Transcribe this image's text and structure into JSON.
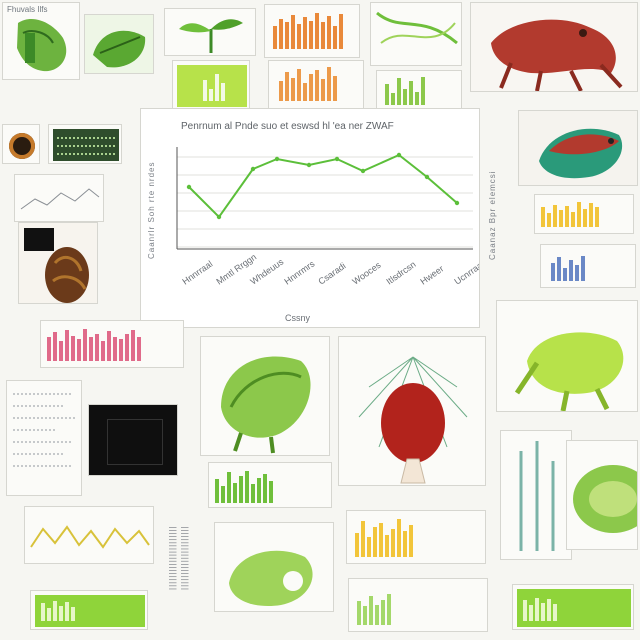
{
  "main_chart": {
    "title": "Penrnum al Pnde suo et eswsd hl 'ea ner ZWAF",
    "x_tick_labels": [
      "Hnnrraal",
      "Mmtl Rrggn",
      "Whdeuus",
      "Hnnrmrs",
      "Csaradi",
      "Wooces",
      "Itlsdrcsn",
      "Hweer",
      "Ucnrraal"
    ],
    "xlabel": "Cssny",
    "ylabel": "Caanrlr Soh rte nrdes",
    "right_label": "Caanaz Bpr elemcsi"
  },
  "top_left_label": "Fhuvals Ilfs",
  "colors": {
    "leaf_green": "#7fbf2a",
    "lime": "#b7e24a",
    "orange": "#e9893a",
    "red": "#b23a2e",
    "pink": "#e06a8a",
    "yellow": "#f2c53a",
    "dark": "#1b1b1b"
  }
}
